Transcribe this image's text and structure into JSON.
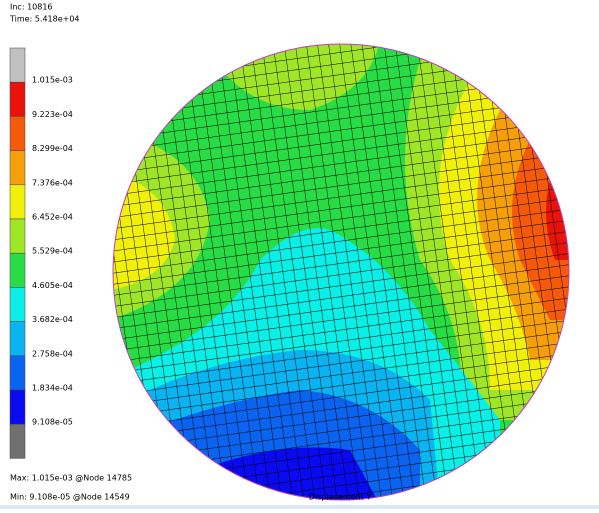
{
  "header": {
    "inc": "Inc:  10816",
    "time": "Time:  5.418e+04"
  },
  "legend": {
    "labels": [
      "1.015e-03",
      "9.223e-04",
      "8.299e-04",
      "7.376e-04",
      "6.452e-04",
      "5.529e-04",
      "4.605e-04",
      "3.682e-04",
      "2.758e-04",
      "1.834e-04",
      "9.108e-05"
    ],
    "colors": [
      "#c0c0c0",
      "#e8140c",
      "#f55a0a",
      "#f5a00a",
      "#f0f00a",
      "#a0e628",
      "#28dc46",
      "#0af0e6",
      "#0ab4f0",
      "#0a64f0",
      "#0a0af0",
      "#707070"
    ]
  },
  "footer": {
    "max": "Max:  1.015e-03 @Node  14785",
    "min": "Min:  9.108e-05 @Node  14549",
    "title": "Displacement Y"
  }
}
